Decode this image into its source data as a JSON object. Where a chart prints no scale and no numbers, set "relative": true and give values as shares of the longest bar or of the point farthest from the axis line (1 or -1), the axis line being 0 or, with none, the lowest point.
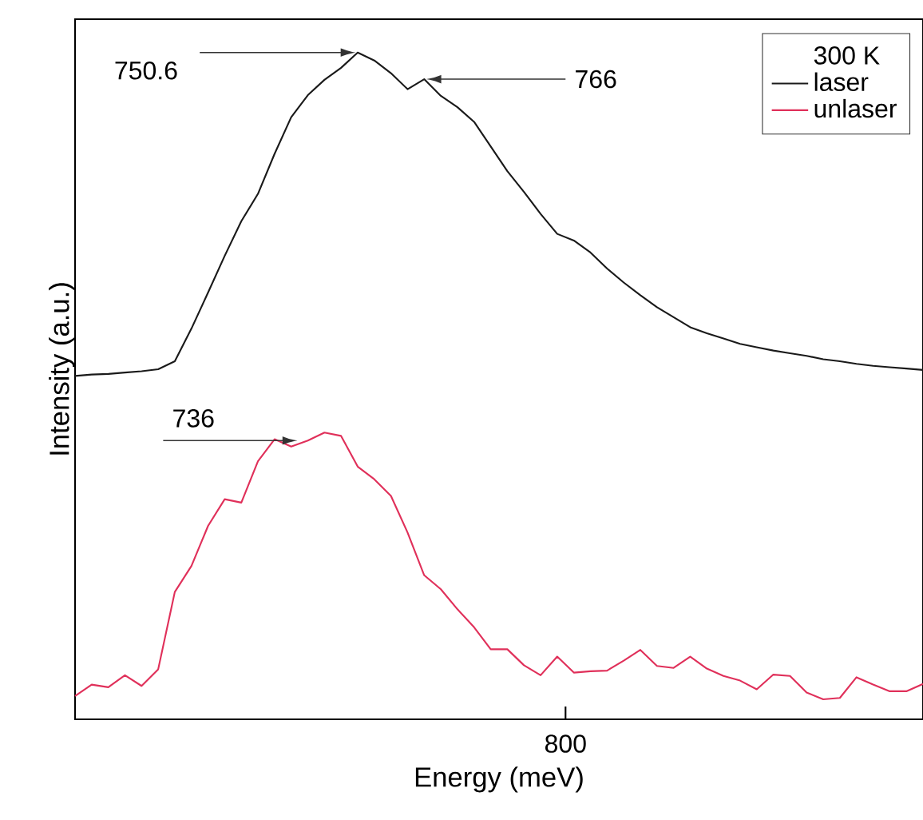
{
  "chart_data": {
    "type": "line",
    "xlabel": "Energy (meV)",
    "ylabel": "Intensity (a.u.)",
    "relative": true,
    "legend_title": "300 K",
    "legend": "top right",
    "categories": [
      null,
      null,
      null,
      null,
      null,
      null,
      null,
      null,
      null,
      null,
      null,
      null,
      null,
      null,
      null,
      null,
      null,
      null,
      null,
      null,
      null,
      null,
      null,
      null,
      null,
      null,
      null,
      null,
      null,
      null,
      null,
      null,
      null,
      null,
      null,
      null,
      null,
      null,
      null,
      null,
      null,
      null,
      null,
      null,
      null,
      null,
      null,
      null,
      null,
      null,
      null,
      null
    ],
    "annotations": [
      "750.6",
      "766",
      "736",
      "800"
    ],
    "series": [
      {
        "name": "laser",
        "color": "#1a1a1a",
        "values": [
          0.515,
          0.517,
          0.518,
          0.52,
          0.522,
          0.525,
          0.537,
          0.586,
          0.64,
          0.695,
          0.747,
          0.788,
          0.848,
          0.903,
          0.936,
          0.959,
          0.977,
          1.0,
          0.988,
          0.969,
          0.945,
          0.96,
          0.935,
          0.918,
          0.896,
          0.859,
          0.822,
          0.791,
          0.758,
          0.728,
          0.718,
          0.7,
          0.676,
          0.655,
          0.636,
          0.618,
          0.603,
          0.588,
          0.579,
          0.571,
          0.563,
          0.558,
          0.553,
          0.549,
          0.545,
          0.54,
          0.537,
          0.533,
          0.53,
          0.528,
          0.526,
          0.524
        ]
      },
      {
        "name": "unlaser",
        "color": "#e0305a",
        "values": [
          0.035,
          0.052,
          0.048,
          0.066,
          0.05,
          0.075,
          0.191,
          0.23,
          0.29,
          0.33,
          0.325,
          0.387,
          0.42,
          0.409,
          0.418,
          0.43,
          0.425,
          0.379,
          0.36,
          0.335,
          0.28,
          0.216,
          0.195,
          0.165,
          0.138,
          0.105,
          0.105,
          0.081,
          0.066,
          0.094,
          0.07,
          0.072,
          0.073,
          0.088,
          0.104,
          0.08,
          0.077,
          0.094,
          0.076,
          0.065,
          0.058,
          0.045,
          0.067,
          0.065,
          0.04,
          0.03,
          0.032,
          0.063,
          0.052,
          0.042,
          0.042,
          0.053
        ]
      }
    ]
  }
}
